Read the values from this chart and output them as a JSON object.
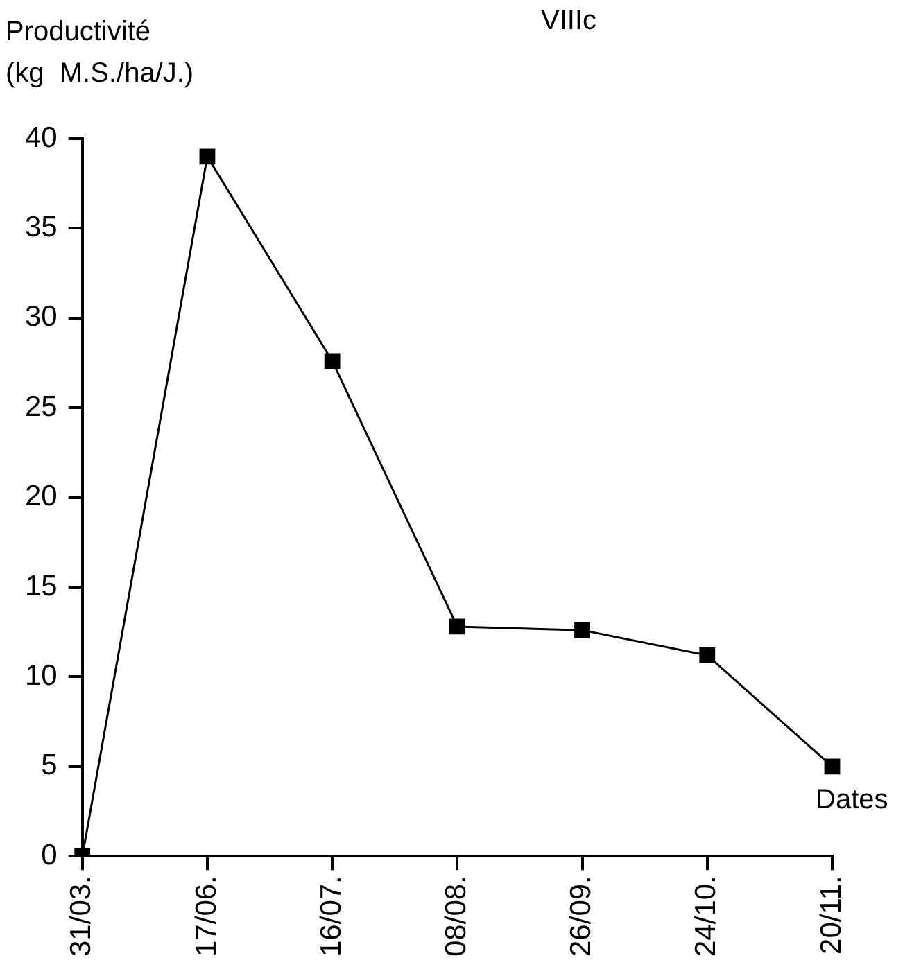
{
  "chart_data": {
    "type": "line",
    "title": "VIIIc",
    "ylabel": "Productivité\n(kg  M.S./ha/J.)",
    "xlabel": "Dates",
    "categories": [
      "31/03.",
      "17/06.",
      "16/07.",
      "08/08.",
      "26/09.",
      "24/10.",
      "20/11."
    ],
    "series": [
      {
        "color": "#000000",
        "values": [
          0,
          39,
          27.6,
          12.8,
          12.6,
          11.2,
          5
        ]
      }
    ],
    "ylim": [
      0,
      40
    ],
    "yticks": [
      0,
      5,
      10,
      15,
      20,
      25,
      30,
      35,
      40
    ],
    "grid": false,
    "legend": false,
    "marker": "square",
    "line_style": "solid"
  }
}
